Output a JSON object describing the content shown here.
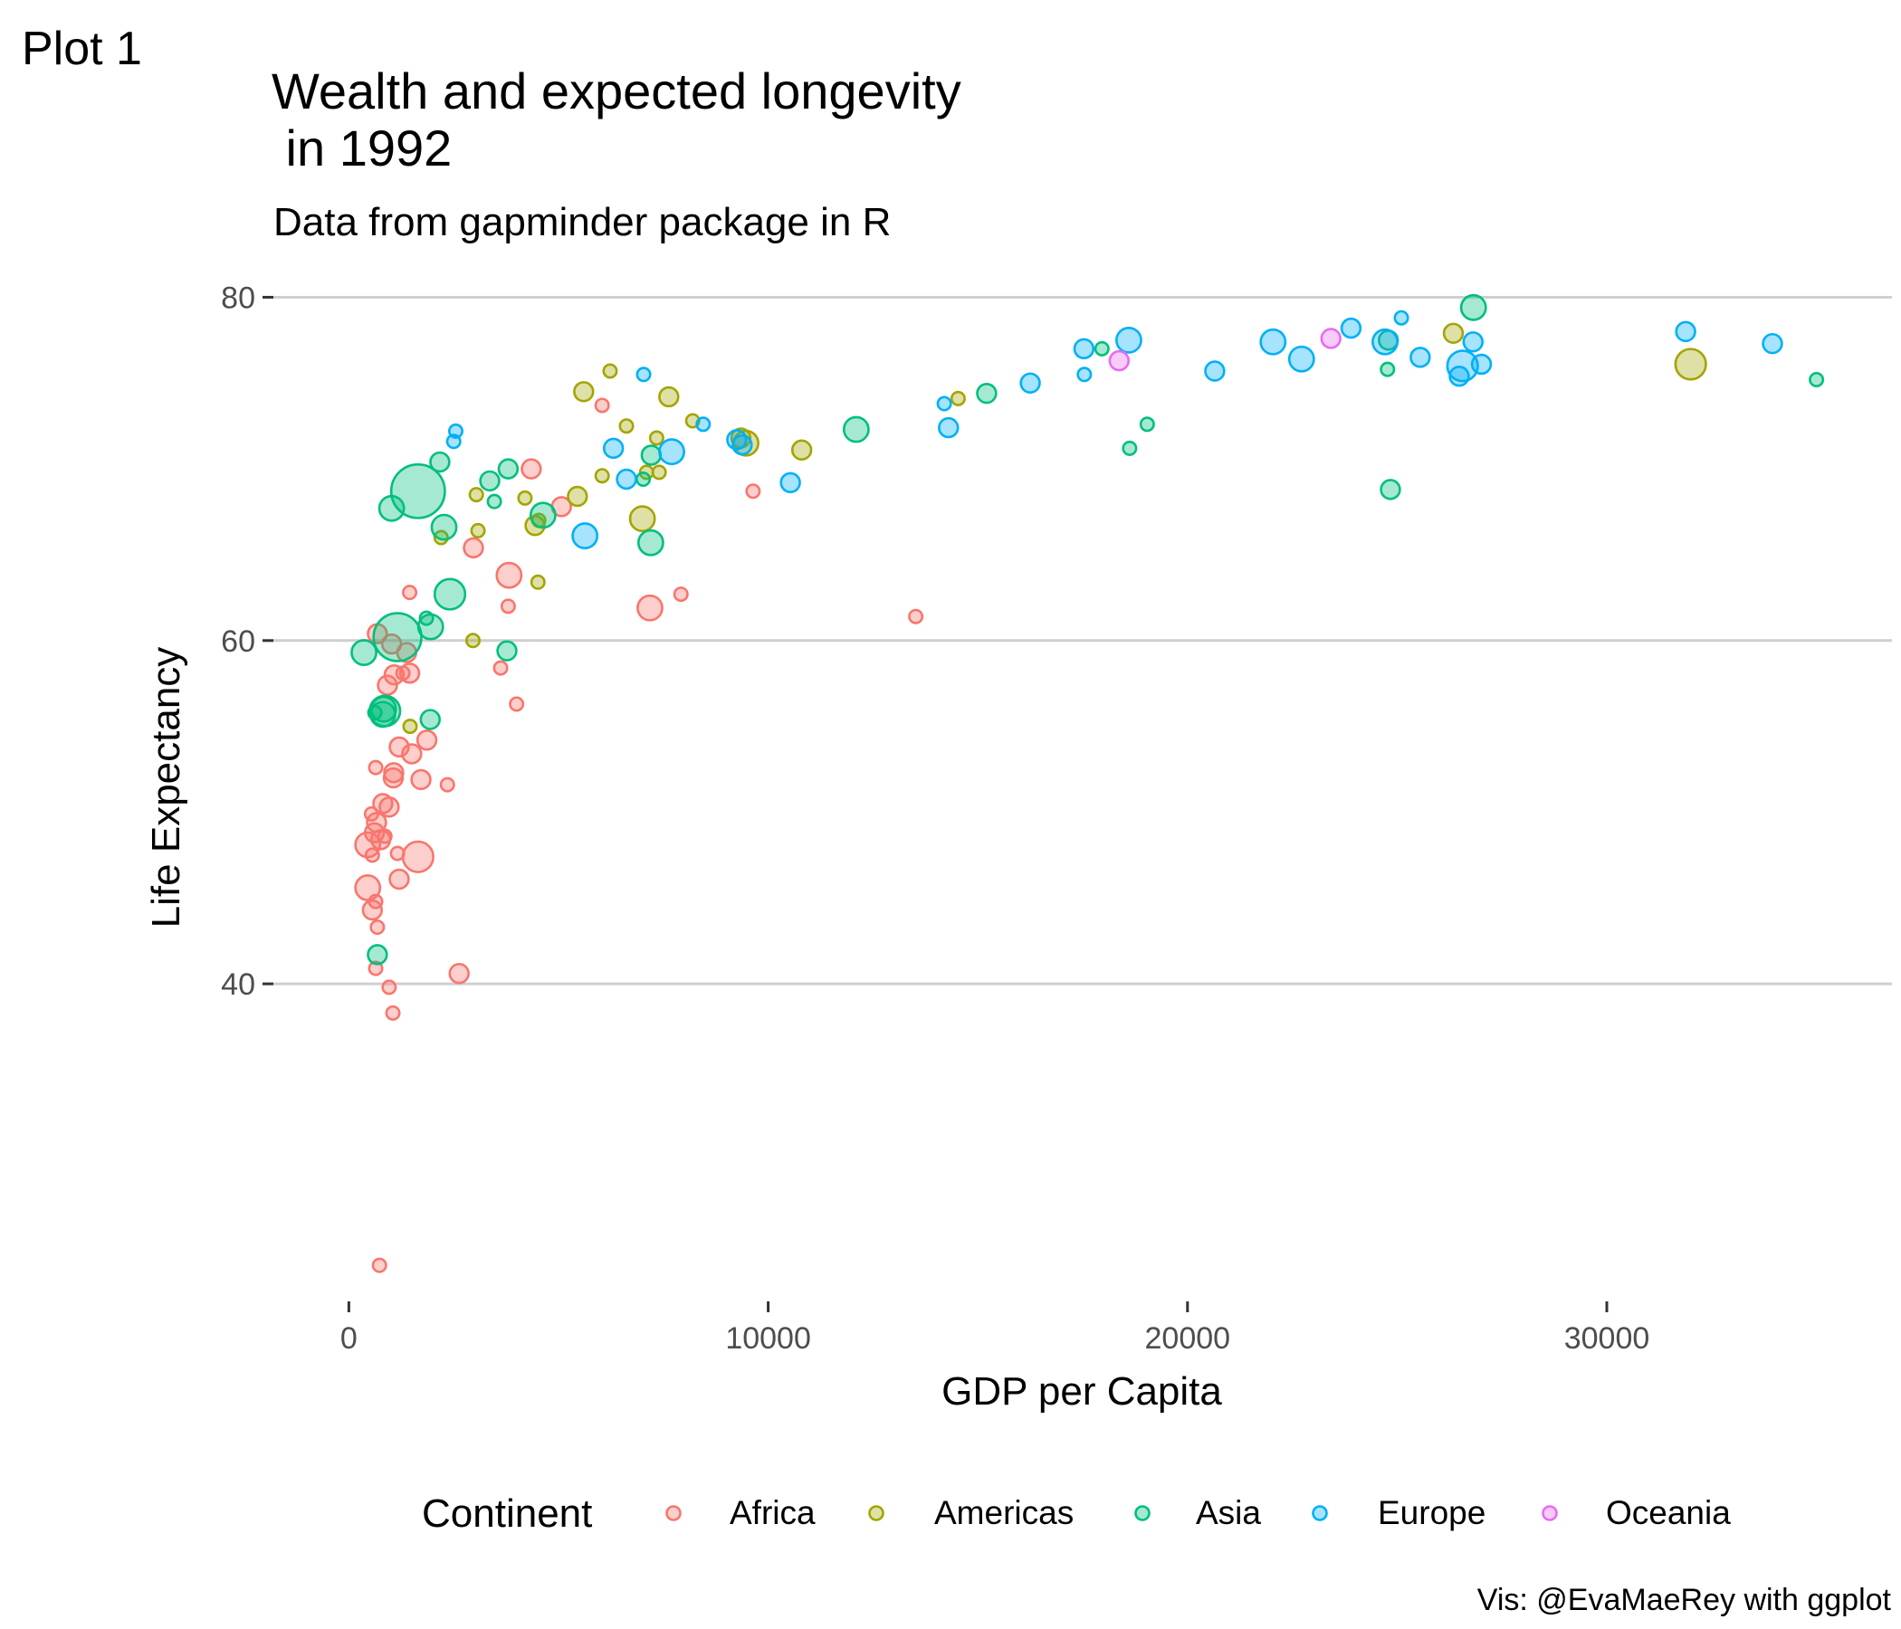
{
  "plot_tag": "Plot 1",
  "caption": "Vis: @EvaMaeRey with ggplot",
  "colors": {
    "Africa": "#F8766D",
    "Americas": "#A3A500",
    "Asia": "#00BF7D",
    "Europe": "#00B0F6",
    "Oceania": "#E76BF3",
    "grid": "#cfcfcf"
  },
  "chart_data": {
    "type": "scatter",
    "title": "Wealth and expected longevity\n in 1992",
    "title_lines": [
      "Wealth and expected longevity",
      " in 1992"
    ],
    "subtitle": "Data from gapminder package in R",
    "xlabel": "GDP per Capita",
    "ylabel": "Life Expectancy",
    "xlim": [
      -1800,
      36800
    ],
    "ylim": [
      21.5,
      81.5
    ],
    "x_ticks": [
      {
        "value": 0,
        "label": "0"
      },
      {
        "value": 10000,
        "label": "10000"
      },
      {
        "value": 20000,
        "label": "20000"
      },
      {
        "value": 30000,
        "label": "30000"
      }
    ],
    "y_ticks": [
      {
        "value": 40,
        "label": "40"
      },
      {
        "value": 60,
        "label": "60"
      },
      {
        "value": 80,
        "label": "80"
      }
    ],
    "grid": "horizontal major",
    "legend": {
      "title": "Continent",
      "position": "bottom",
      "items": [
        "Africa",
        "Americas",
        "Asia",
        "Europe",
        "Oceania"
      ]
    },
    "size_note": "point size reflects population (no size legend shown)",
    "series": [
      {
        "name": "Africa",
        "points": [
          [
            730,
            23.6,
            1
          ],
          [
            1050,
            38.3,
            1
          ],
          [
            960,
            39.8,
            1
          ],
          [
            2630,
            40.6,
            2
          ],
          [
            640,
            40.9,
            1
          ],
          [
            680,
            43.3,
            1
          ],
          [
            560,
            44.3,
            2
          ],
          [
            640,
            44.8,
            1
          ],
          [
            450,
            45.6,
            3
          ],
          [
            1200,
            46.1,
            2
          ],
          [
            1650,
            47.4,
            4
          ],
          [
            560,
            47.5,
            1
          ],
          [
            1160,
            47.6,
            1
          ],
          [
            450,
            48.1,
            3
          ],
          [
            760,
            48.4,
            2
          ],
          [
            860,
            48.6,
            1
          ],
          [
            610,
            48.8,
            2
          ],
          [
            660,
            49.4,
            2
          ],
          [
            540,
            49.9,
            1
          ],
          [
            960,
            50.3,
            2
          ],
          [
            810,
            50.5,
            2
          ],
          [
            2350,
            51.6,
            1
          ],
          [
            1720,
            51.9,
            2
          ],
          [
            1060,
            52.0,
            2
          ],
          [
            1070,
            52.3,
            2
          ],
          [
            640,
            52.6,
            1
          ],
          [
            1500,
            53.4,
            2
          ],
          [
            1200,
            53.8,
            2
          ],
          [
            1860,
            54.2,
            2
          ],
          [
            4000,
            56.3,
            1
          ],
          [
            920,
            57.4,
            2
          ],
          [
            1080,
            58.0,
            2
          ],
          [
            1450,
            58.1,
            2
          ],
          [
            1290,
            58.1,
            1
          ],
          [
            3620,
            58.4,
            1
          ],
          [
            1380,
            59.3,
            2
          ],
          [
            1020,
            59.8,
            2
          ],
          [
            680,
            60.4,
            2
          ],
          [
            13520,
            61.4,
            1
          ],
          [
            7180,
            61.9,
            3
          ],
          [
            3800,
            62.0,
            1
          ],
          [
            1450,
            62.8,
            1
          ],
          [
            7920,
            62.7,
            1
          ],
          [
            3820,
            63.8,
            3
          ],
          [
            2970,
            65.4,
            2
          ],
          [
            5070,
            67.8,
            2
          ],
          [
            9640,
            68.7,
            1
          ],
          [
            4350,
            70.0,
            2
          ],
          [
            6040,
            73.7,
            1
          ]
        ]
      },
      {
        "name": "Americas",
        "points": [
          [
            1460,
            55.0,
            1
          ],
          [
            2960,
            60.0,
            1
          ],
          [
            4510,
            63.4,
            1
          ],
          [
            2200,
            66.0,
            1
          ],
          [
            3080,
            66.4,
            1
          ],
          [
            4440,
            66.7,
            2
          ],
          [
            4530,
            67.0,
            1
          ],
          [
            7000,
            67.1,
            3
          ],
          [
            5450,
            68.4,
            2
          ],
          [
            3040,
            68.5,
            1
          ],
          [
            4200,
            68.3,
            1
          ],
          [
            6040,
            69.6,
            1
          ],
          [
            7100,
            69.8,
            1
          ],
          [
            7400,
            69.8,
            1
          ],
          [
            10800,
            71.1,
            2
          ],
          [
            9470,
            71.5,
            3
          ],
          [
            9350,
            71.8,
            2
          ],
          [
            7340,
            71.8,
            1
          ],
          [
            6620,
            72.5,
            1
          ],
          [
            8200,
            72.8,
            1
          ],
          [
            14530,
            74.1,
            1
          ],
          [
            7630,
            74.2,
            2
          ],
          [
            5600,
            74.5,
            2
          ],
          [
            26340,
            77.9,
            2
          ],
          [
            6230,
            75.7,
            1
          ],
          [
            32000,
            76.1,
            4
          ]
        ]
      },
      {
        "name": "Asia",
        "points": [
          [
            680,
            41.7,
            2
          ],
          [
            1940,
            55.4,
            2
          ],
          [
            810,
            55.7,
            3
          ],
          [
            860,
            55.9,
            4
          ],
          [
            830,
            56.0,
            3
          ],
          [
            620,
            55.8,
            1
          ],
          [
            360,
            59.3,
            3
          ],
          [
            1160,
            60.2,
            7
          ],
          [
            3770,
            59.4,
            2
          ],
          [
            1950,
            60.8,
            3
          ],
          [
            1850,
            61.3,
            1
          ],
          [
            2410,
            62.7,
            4
          ],
          [
            2270,
            66.6,
            3
          ],
          [
            7200,
            65.7,
            3
          ],
          [
            4630,
            67.3,
            3
          ],
          [
            1020,
            67.7,
            3
          ],
          [
            1650,
            68.7,
            8
          ],
          [
            3470,
            68.1,
            1
          ],
          [
            24840,
            68.8,
            2
          ],
          [
            3360,
            69.3,
            2
          ],
          [
            7020,
            69.4,
            1
          ],
          [
            3800,
            70.0,
            2
          ],
          [
            2170,
            70.4,
            2
          ],
          [
            7210,
            70.8,
            2
          ],
          [
            18620,
            71.2,
            1
          ],
          [
            19040,
            72.6,
            1
          ],
          [
            12100,
            72.3,
            3
          ],
          [
            15210,
            74.4,
            2
          ],
          [
            17960,
            77.0,
            1
          ],
          [
            24770,
            75.8,
            1
          ],
          [
            24790,
            77.5,
            2
          ],
          [
            26820,
            79.4,
            3
          ],
          [
            35000,
            75.2,
            1
          ]
        ]
      },
      {
        "name": "Europe",
        "points": [
          [
            2500,
            71.6,
            1
          ],
          [
            2550,
            72.2,
            1
          ],
          [
            5630,
            66.1,
            3
          ],
          [
            6620,
            69.4,
            2
          ],
          [
            10530,
            69.2,
            2
          ],
          [
            6310,
            71.2,
            2
          ],
          [
            7700,
            71.0,
            3
          ],
          [
            8450,
            72.6,
            1
          ],
          [
            9250,
            71.7,
            2
          ],
          [
            9380,
            71.4,
            2
          ],
          [
            14300,
            72.4,
            2
          ],
          [
            14200,
            73.8,
            1
          ],
          [
            7030,
            75.5,
            1
          ],
          [
            16250,
            75.0,
            2
          ],
          [
            17540,
            75.5,
            1
          ],
          [
            17530,
            77.0,
            2
          ],
          [
            18600,
            77.5,
            3
          ],
          [
            20650,
            75.7,
            2
          ],
          [
            22040,
            77.4,
            3
          ],
          [
            22720,
            76.4,
            3
          ],
          [
            23900,
            78.2,
            2
          ],
          [
            24710,
            77.4,
            3
          ],
          [
            25100,
            78.8,
            1
          ],
          [
            25550,
            76.5,
            2
          ],
          [
            26480,
            75.4,
            2
          ],
          [
            26560,
            76.0,
            4
          ],
          [
            26810,
            77.4,
            2
          ],
          [
            27010,
            76.1,
            2
          ],
          [
            31880,
            78.0,
            2
          ],
          [
            33950,
            77.3,
            2
          ]
        ]
      },
      {
        "name": "Oceania",
        "points": [
          [
            18370,
            76.3,
            2
          ],
          [
            23420,
            77.6,
            2
          ]
        ]
      }
    ]
  }
}
